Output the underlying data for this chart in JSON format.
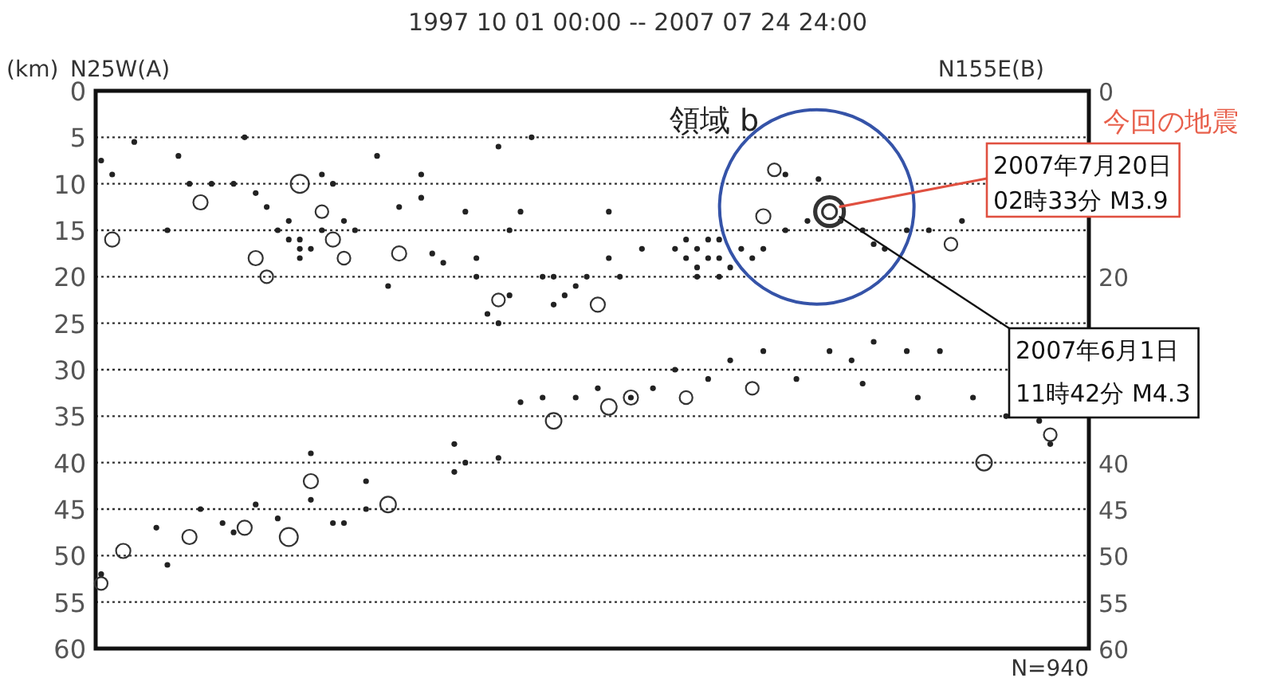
{
  "chart_data": {
    "type": "scatter",
    "title": "1997 10 01 00:00 -- 2007 07 24 24:00",
    "ylabel": "(km)",
    "categories": [
      null,
      null,
      null,
      null,
      null,
      null,
      null,
      null,
      null,
      null,
      null,
      null,
      null,
      null,
      null,
      null,
      null,
      null,
      null,
      null,
      null,
      null,
      null,
      null,
      null,
      null,
      null,
      null,
      null,
      null,
      null,
      null,
      null,
      null,
      null,
      null,
      null,
      null,
      null,
      null,
      null,
      null,
      null,
      null,
      null,
      null,
      null,
      null,
      null,
      null,
      null,
      null,
      null,
      null,
      null,
      null,
      null,
      null,
      null,
      null,
      null,
      null,
      null,
      null,
      null,
      null,
      null,
      null,
      null,
      null,
      null,
      null,
      null,
      null,
      null,
      null,
      null,
      null,
      null,
      null,
      null,
      null,
      null,
      null,
      null,
      null,
      null,
      null,
      null,
      null
    ],
    "series": [
      {
        "color": "#222222",
        "values": [
          7.5,
          9,
          null,
          5.5,
          null,
          47,
          15,
          7,
          10,
          45,
          10,
          46.5,
          10,
          5,
          11,
          12.5,
          15,
          16,
          17,
          39,
          9,
          10,
          14,
          15,
          42,
          7,
          21,
          12.5,
          null,
          9,
          17.5,
          18.5,
          38,
          13,
          20,
          24,
          6,
          22,
          13,
          5,
          20,
          23,
          22,
          21,
          20,
          32,
          13,
          20,
          33,
          17,
          32,
          null,
          17,
          18,
          17,
          31,
          18,
          19,
          17,
          null,
          17,
          null,
          9,
          31,
          14,
          9.5,
          28,
          14,
          29,
          15,
          16.5,
          17,
          null,
          15,
          33,
          15,
          28,
          null,
          14,
          33,
          null,
          null,
          35,
          null,
          null,
          35.5,
          38,
          null,
          null,
          null
        ]
      },
      {
        "color": "#222222",
        "values": [
          52,
          null,
          null,
          null,
          null,
          null,
          51,
          null,
          null,
          null,
          null,
          null,
          47.5,
          null,
          44.5,
          null,
          46,
          null,
          16,
          44,
          15,
          46.5,
          46.5,
          null,
          45,
          null,
          null,
          null,
          null,
          11.5,
          null,
          null,
          41,
          40,
          18,
          null,
          25,
          15,
          33.5,
          null,
          33,
          20,
          null,
          33,
          null,
          null,
          18,
          null,
          null,
          null,
          null,
          null,
          30,
          16,
          19,
          18,
          16,
          29,
          null,
          18,
          28,
          null,
          15,
          null,
          null,
          null,
          null,
          null,
          null,
          31.5,
          27,
          null,
          null,
          28,
          null,
          null,
          null,
          null,
          null,
          null,
          null,
          null,
          null,
          null,
          null,
          null,
          null,
          null,
          null,
          null
        ]
      },
      {
        "color": "#222222",
        "values": [
          null,
          null,
          null,
          null,
          null,
          null,
          null,
          null,
          null,
          null,
          null,
          null,
          null,
          null,
          null,
          null,
          null,
          14,
          18,
          17,
          null,
          null,
          null,
          null,
          null,
          null,
          null,
          null,
          null,
          null,
          null,
          null,
          null,
          null,
          null,
          null,
          39.5,
          null,
          null,
          null,
          null,
          null,
          null,
          null,
          null,
          null,
          null,
          null,
          null,
          null,
          null,
          null,
          null,
          null,
          20,
          16,
          20,
          null,
          null,
          null,
          null,
          null,
          null,
          null,
          null,
          null,
          null,
          null,
          null,
          null,
          null,
          null,
          null,
          null,
          null,
          null,
          null,
          null,
          null,
          null,
          null,
          null,
          null,
          null,
          null,
          null,
          null,
          null,
          null,
          null
        ]
      },
      {
        "type": "bubble",
        "color": "#333333",
        "values": [
          53,
          16,
          49.5,
          null,
          null,
          null,
          null,
          null,
          48,
          12,
          null,
          null,
          null,
          47,
          18,
          20,
          null,
          48,
          10,
          42,
          13,
          16,
          18,
          null,
          null,
          null,
          44.5,
          17.5,
          null,
          null,
          null,
          null,
          null,
          null,
          null,
          null,
          22.5,
          null,
          null,
          null,
          null,
          35.5,
          null,
          null,
          null,
          23,
          34,
          null,
          33,
          null,
          null,
          null,
          null,
          33,
          null,
          null,
          null,
          null,
          null,
          32,
          13.5,
          8.5,
          null,
          null,
          null,
          null,
          13,
          null,
          null,
          null,
          null,
          null,
          null,
          null,
          null,
          null,
          null,
          16.5,
          null,
          null,
          40,
          null,
          null,
          null,
          null,
          null,
          37,
          null,
          null,
          null
        ],
        "sizes": [
          0.2,
          0.25,
          0.25,
          null,
          null,
          null,
          null,
          null,
          0.25,
          0.25,
          null,
          null,
          null,
          0.25,
          0.25,
          0.2,
          null,
          0.4,
          0.4,
          0.25,
          0.2,
          0.25,
          0.2,
          null,
          null,
          null,
          0.3,
          0.25,
          null,
          null,
          null,
          null,
          null,
          null,
          null,
          null,
          0.2,
          null,
          null,
          null,
          null,
          0.3,
          null,
          null,
          null,
          0.25,
          0.3,
          null,
          0.25,
          null,
          null,
          null,
          null,
          0.2,
          null,
          null,
          null,
          null,
          null,
          0.2,
          0.25,
          0.2,
          null,
          null,
          null,
          null,
          1,
          null,
          null,
          null,
          null,
          null,
          null,
          null,
          null,
          null,
          null,
          0.2,
          null,
          null,
          0.3,
          null,
          null,
          null,
          null,
          null,
          0.2,
          null,
          null,
          null
        ]
      }
    ],
    "ylim": [
      60,
      0
    ],
    "yticks": [
      0,
      5,
      10,
      15,
      20,
      25,
      30,
      35,
      40,
      45,
      50,
      55,
      60
    ],
    "y2lim": [
      60,
      0
    ],
    "y2ticks": [
      0,
      20,
      40,
      45,
      50,
      55,
      60
    ],
    "grid": "y",
    "marker": "circle",
    "tick_labels": "y",
    "annotations": [
      "N25W(A)",
      "N155E(B)",
      "領域 b",
      "今回の地震",
      "2007年7月20日\n02時33分 M3.9",
      "2007年6月1日\n11時42分 M4.3",
      "N=940"
    ]
  }
}
